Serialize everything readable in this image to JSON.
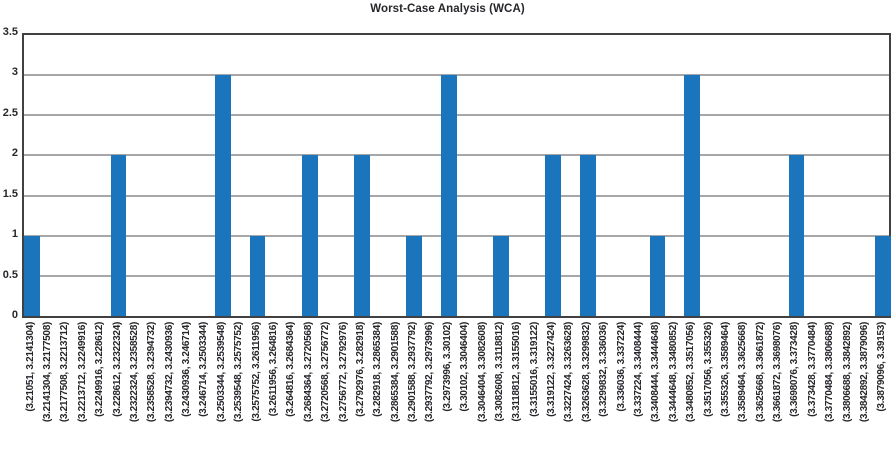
{
  "title": "Worst-Case Analysis (WCA)",
  "colors": {
    "bar": "#1b75bc",
    "grid": "#a7a7a9",
    "frame": "#414042",
    "text": "#26262b",
    "background": "#ffffff"
  },
  "chart_data": {
    "type": "bar",
    "title": "Worst-Case Analysis (WCA)",
    "xlabel": "",
    "ylabel": "",
    "ylim": [
      0,
      3.5
    ],
    "yticks": [
      0,
      0.5,
      1,
      1.5,
      2,
      2.5,
      3,
      3.5
    ],
    "grid": true,
    "legend": "none",
    "categories": [
      "(3.21051, 3.2141304)",
      "(3.2141304, 3.2177508)",
      "(3.2177508, 3.2213712)",
      "(3.2213712, 3.2249916)",
      "(3.2249916, 3.228612)",
      "(3.228612, 3.2322324)",
      "(3.2322324, 3.2358528)",
      "(3.2358528, 3.2394732)",
      "(3.2394732, 3.2430936)",
      "(3.2430936, 3.246714)",
      "(3.246714, 3.2503344)",
      "(3.2503344, 3.2539548)",
      "(3.2539548, 3.2575752)",
      "(3.2575752, 3.2611956)",
      "(3.2611956, 3.264816)",
      "(3.264816, 3.2684364)",
      "(3.2684364, 3.2720568)",
      "(3.2720568, 3.2756772)",
      "(3.2756772, 3.2792976)",
      "(3.2792976, 3.282918)",
      "(3.282918, 3.2865384)",
      "(3.2865384, 3.2901588)",
      "(3.2901588, 3.2937792)",
      "(3.2937792, 3.2973996)",
      "(3.2973996, 3.30102)",
      "(3.30102, 3.3046404)",
      "(3.3046404, 3.3082608)",
      "(3.3082608, 3.3118812)",
      "(3.3118812, 3.3155016)",
      "(3.3155016, 3.319122)",
      "(3.319122, 3.3227424)",
      "(3.3227424, 3.3263628)",
      "(3.3263628, 3.3299832)",
      "(3.3299832, 3.336036)",
      "(3.336036, 3.337224)",
      "(3.337224, 3.3408444)",
      "(3.3408444, 3.3444648)",
      "(3.3444648, 3.3480852)",
      "(3.3480852, 3.3517056)",
      "(3.3517056, 3.355326)",
      "(3.355326, 3.3589464)",
      "(3.3589464, 3.3625668)",
      "(3.3625668, 3.3661872)",
      "(3.3661872, 3.3698076)",
      "(3.3698076, 3.373428)",
      "(3.373428, 3.3770484)",
      "(3.3770484, 3.3806688)",
      "(3.3806688, 3.3842892)",
      "(3.3842892, 3.3879096)",
      "(3.3879096, 3.39153)"
    ],
    "values": [
      1,
      0,
      0,
      0,
      0,
      2,
      0,
      0,
      0,
      0,
      0,
      3,
      0,
      1,
      0,
      0,
      2,
      0,
      0,
      2,
      0,
      0,
      1,
      0,
      3,
      0,
      0,
      1,
      0,
      0,
      2,
      0,
      2,
      0,
      0,
      0,
      1,
      0,
      3,
      0,
      0,
      0,
      0,
      0,
      2,
      0,
      0,
      0,
      0,
      1
    ]
  }
}
